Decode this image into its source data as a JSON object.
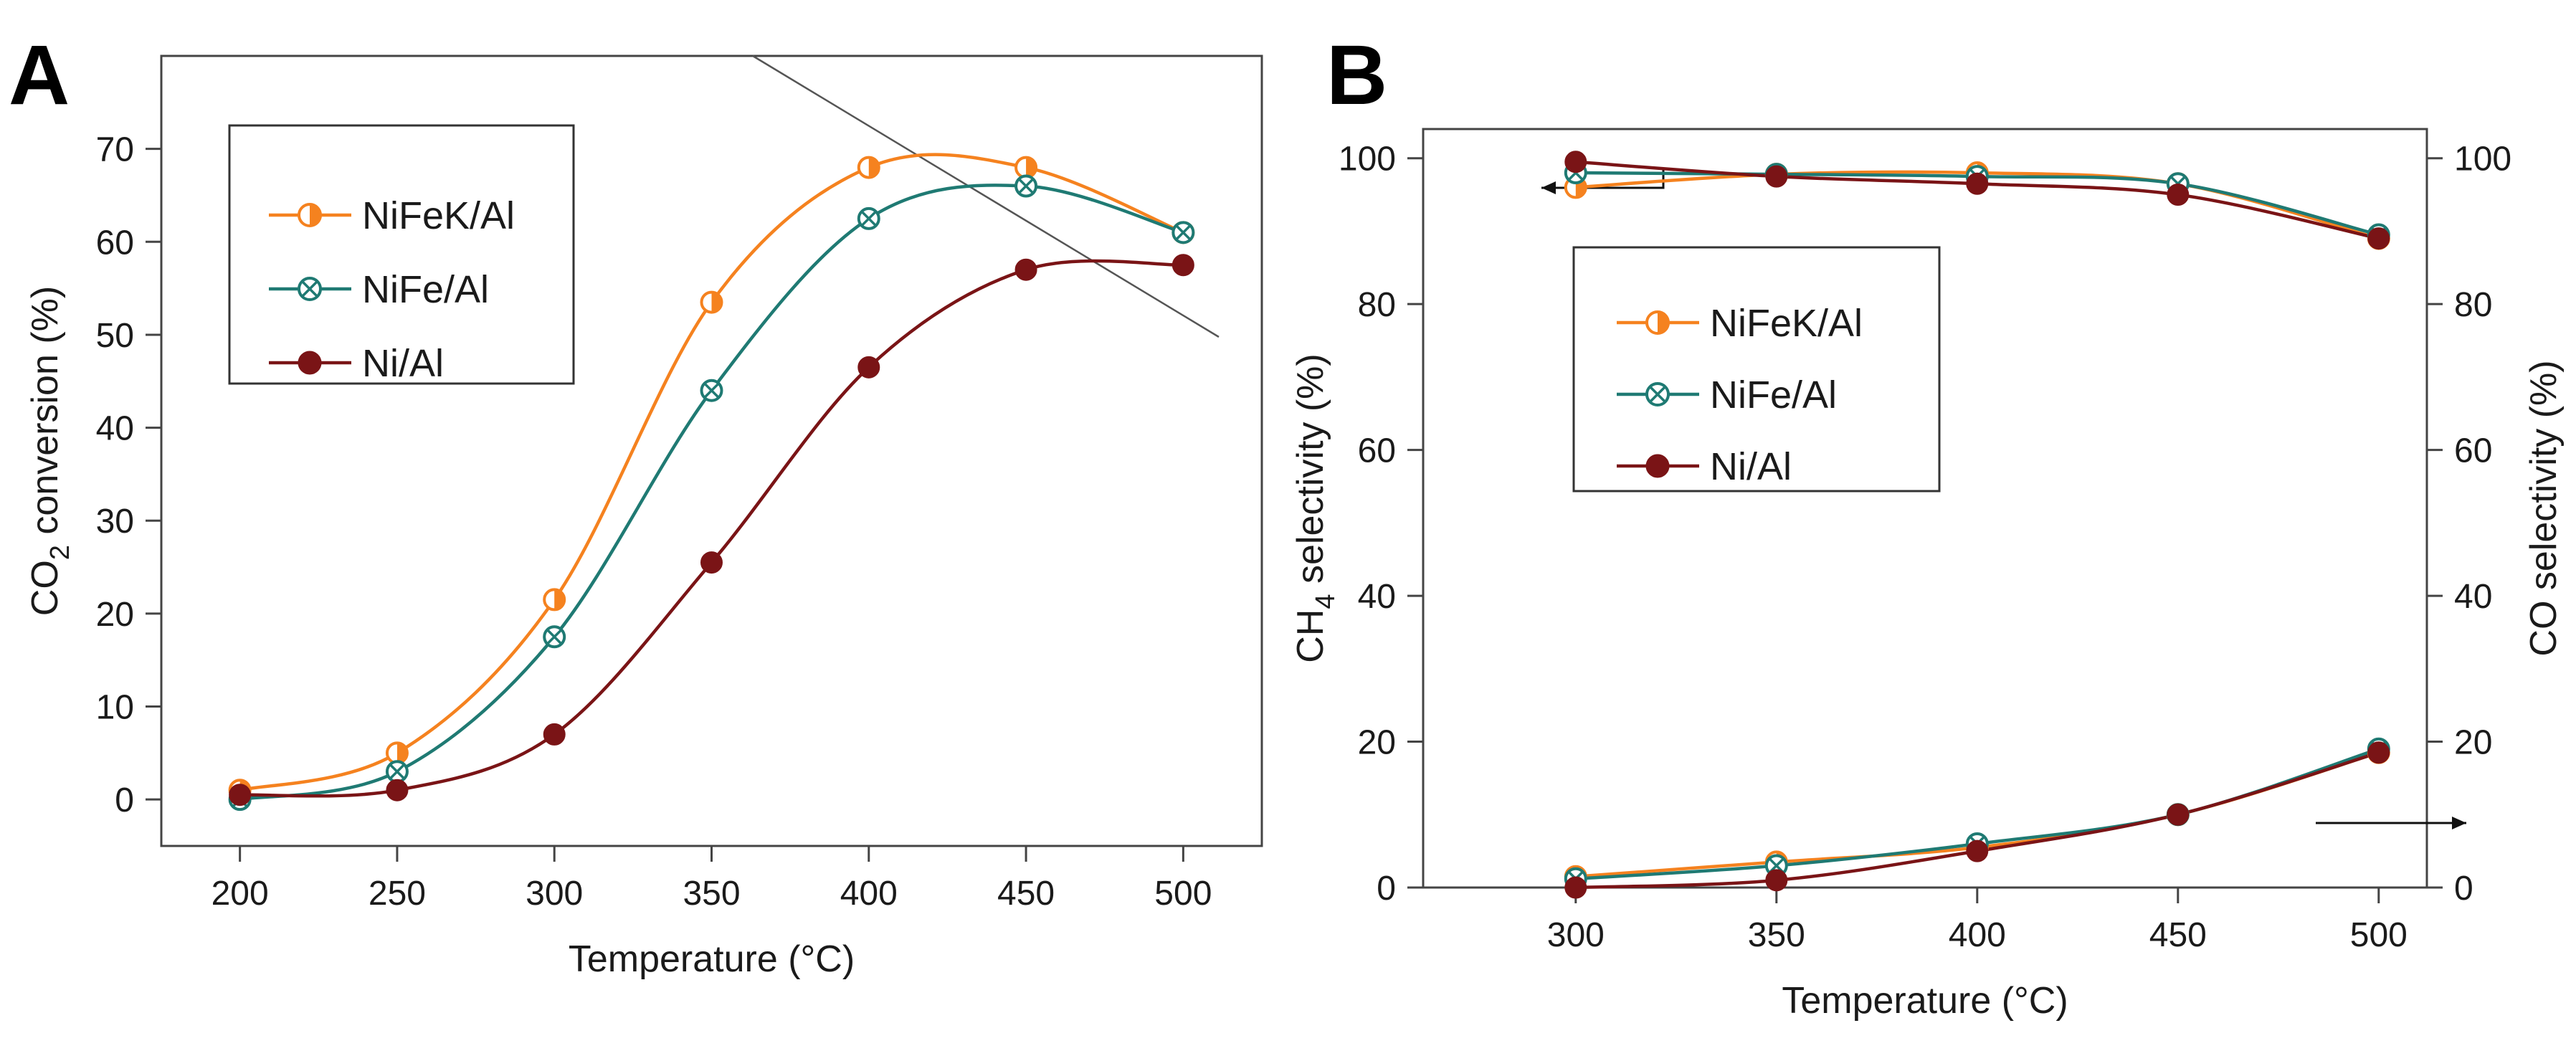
{
  "chart_data": [
    {
      "panel": "A",
      "type": "line",
      "title": "",
      "xlabel": "Temperature (°C)",
      "ylabel_main": "CO",
      "ylabel_sub": "2",
      "ylabel_rest": " conversion (%)",
      "xlim": [
        175,
        525
      ],
      "ylim": [
        -5,
        80
      ],
      "xticks": [
        200,
        250,
        300,
        350,
        400,
        450,
        500
      ],
      "yticks": [
        0,
        10,
        20,
        30,
        40,
        50,
        60,
        70
      ],
      "x": [
        200,
        250,
        300,
        350,
        400,
        450,
        500
      ],
      "series": [
        {
          "name": "NiFeK/Al",
          "color": "#f5821f",
          "marker": "half",
          "values": [
            1,
            5,
            21.5,
            53.5,
            68,
            68,
            61
          ]
        },
        {
          "name": "NiFe/Al",
          "color": "#1f7a73",
          "marker": "cross",
          "values": [
            0,
            3,
            17.5,
            44,
            62.5,
            66,
            61
          ]
        },
        {
          "name": "Ni/Al",
          "color": "#7a1416",
          "marker": "filled",
          "values": [
            0.5,
            1,
            7,
            25.5,
            46.5,
            57,
            57.5
          ]
        }
      ],
      "legend": {
        "position": "top-left"
      }
    },
    {
      "panel": "B",
      "type": "line",
      "title": "",
      "xlabel": "Temperature (°C)",
      "ylabel_left_main": "CH",
      "ylabel_left_sub": "4",
      "ylabel_left_rest": " selectivity (%)",
      "ylabel_right": "CO selectivity (%)",
      "xlim": [
        262,
        512
      ],
      "ylim": [
        0,
        104
      ],
      "xticks": [
        300,
        350,
        400,
        450,
        500
      ],
      "yticks_left": [
        0,
        20,
        40,
        60,
        80,
        100
      ],
      "yticks_right": [
        0,
        20,
        40,
        60,
        80,
        100
      ],
      "x": [
        300,
        350,
        400,
        450,
        500
      ],
      "series": [
        {
          "name": "NiFeK/Al",
          "color": "#f5821f",
          "marker": "half",
          "ch4": [
            96,
            97.8,
            98,
            96.5,
            89
          ],
          "co": [
            1.5,
            3.5,
            5.5,
            10,
            18.5
          ]
        },
        {
          "name": "NiFe/Al",
          "color": "#1f7a73",
          "marker": "cross",
          "ch4": [
            98,
            97.8,
            97.5,
            96.5,
            89.5
          ],
          "co": [
            1.2,
            3,
            6,
            10,
            19
          ]
        },
        {
          "name": "Ni/Al",
          "color": "#7a1416",
          "marker": "filled",
          "ch4": [
            99.5,
            97.5,
            96.5,
            95,
            89
          ],
          "co": [
            0,
            1,
            5,
            10,
            18.5
          ]
        }
      ],
      "legend": {
        "position": "upper-left"
      }
    }
  ]
}
